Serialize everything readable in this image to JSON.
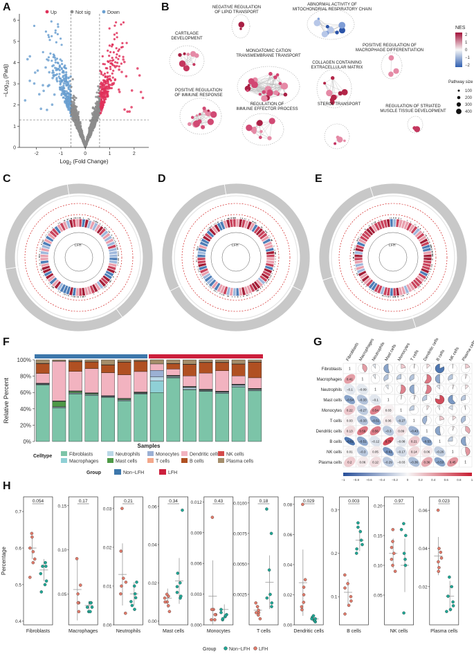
{
  "panels": {
    "A": "A",
    "B": "B",
    "C": "C",
    "D": "D",
    "E": "E",
    "F": "F",
    "G": "G",
    "H": "H"
  },
  "colors": {
    "up": "#e0305a",
    "notsig": "#8c8c8c",
    "down": "#6a9fd0",
    "nonlfh": "#3d77ab",
    "lfh": "#cc1f3c"
  },
  "chart_data": [
    {
      "type": "scatter",
      "panel": "A",
      "legend": [
        "Up",
        "Not sig",
        "Down"
      ],
      "xlabel_main": "Log",
      "xlabel_sub": "2",
      "xlabel_rest": " (Fold Change)",
      "ylabel_main": "−Log",
      "ylabel_sub": "10",
      "ylabel_rest": " (Padj)",
      "x_ticks": [
        "-2",
        "-1",
        "0",
        "1",
        "2"
      ],
      "y_ticks": [
        "0",
        "1",
        "2",
        "3",
        "4",
        "5",
        "6"
      ],
      "xlim": [
        -2.7,
        2.6
      ],
      "ylim": [
        0,
        6.3
      ],
      "fc_threshold": 0.585,
      "p_threshold": 1.3,
      "legend_position": "top"
    },
    {
      "type": "diagram",
      "panel": "B",
      "clusters": [
        "NEGATIVE REGULATION\nOF LIPID TRANSPORT",
        "ABNORMAL ACTIVITY OF\nMITOCHONDRIAL RESPIRATORY CHAIN",
        "CARTILAGE\nDEVELOPMENT",
        "MONOATOMIC CATION\nTRANSMEMBRANE TRANSPORT",
        "POSITIVE REGULATION OF\nMACROPHAGE DIFFERENTIATION",
        "COLLAGEN CONTAINING\nEXTRACELLULAR MATRIX",
        "POSITIVE REGULATION\nOF IMMUNE RESPONSE",
        "REGULATION OF STRIATED\nMUSCLE TISSUE DEVELOPMENT",
        "REGULATION OF\nIMMUNE EFFECTOR PROCESS",
        "STEROL TRANSPORT"
      ],
      "nes_title": "NES",
      "nes_ticks": [
        "2",
        "1",
        "0",
        "−1",
        "−2"
      ],
      "size_title": "Pathway size",
      "size_ticks": [
        "100",
        "200",
        "300",
        "400"
      ]
    },
    {
      "type": "circos",
      "panels": [
        "C",
        "D",
        "E"
      ],
      "center_labels": [
        "LFH",
        "LFH",
        "LFH"
      ]
    },
    {
      "type": "bar",
      "panel": "F",
      "stacked": true,
      "ylabel": "Relative Percent",
      "xlabel": "Samples",
      "y_ticks": [
        "0%",
        "20%",
        "40%",
        "60%",
        "80%",
        "100%"
      ],
      "celltype_title": "Celltype",
      "group_title": "Group",
      "cell_types": [
        "Fibroblasts",
        "Macrophages",
        "Neutrophils",
        "Mast cells",
        "Monocytes",
        "T cells",
        "Dendritic cells",
        "B cells",
        "NK cells",
        "Plasma cells"
      ],
      "cell_colors": [
        "#7cc4a8",
        "#8fd0d6",
        "#b9d7e6",
        "#4e9a47",
        "#9bb0d4",
        "#f3a78b",
        "#f2b3c0",
        "#b05022",
        "#d34a4a",
        "#a58e6b"
      ],
      "groups": [
        "Non−LFH",
        "LFH"
      ],
      "sample_group": [
        0,
        0,
        0,
        0,
        0,
        0,
        0,
        1,
        1,
        1,
        1,
        1,
        1,
        1
      ],
      "samples": [
        [
          64,
          0.5,
          0.5,
          0.3,
          0.5,
          0.2,
          11,
          11,
          0.3,
          4
        ],
        [
          40,
          0.5,
          1,
          6,
          0.6,
          0.4,
          47,
          0,
          0.2,
          1.5
        ],
        [
          56,
          0.5,
          1,
          1.5,
          0.5,
          0.2,
          23,
          11.5,
          0.3,
          1.8
        ],
        [
          57,
          0.6,
          1,
          1,
          0.5,
          0.3,
          30,
          8,
          0.3,
          2.5
        ],
        [
          54,
          0.5,
          0.6,
          0.3,
          0.5,
          0.2,
          28,
          9.5,
          0.3,
          6
        ],
        [
          50,
          0.5,
          1,
          1,
          0.5,
          0.2,
          29,
          15.5,
          0.3,
          2.6
        ],
        [
          58,
          0.5,
          0.7,
          0.5,
          0.5,
          0.3,
          25,
          12.5,
          0.3,
          1.5
        ],
        [
          60,
          0,
          0,
          0,
          0,
          0,
          0,
          0,
          0,
          0
        ],
        [
          71,
          0.5,
          1,
          0.5,
          0.5,
          0.3,
          7,
          6,
          0.3,
          4
        ],
        [
          59,
          0.5,
          2,
          0.5,
          0.5,
          0.3,
          12,
          13,
          0.3,
          5
        ],
        [
          62,
          0.5,
          0.8,
          0.5,
          0.5,
          0.3,
          20,
          13,
          0.3,
          3
        ],
        [
          59,
          0.5,
          1,
          0.5,
          0.5,
          0.3,
          25,
          10,
          0.3,
          3
        ],
        [
          60,
          0.5,
          1.5,
          0.5,
          0.5,
          0.3,
          9,
          13,
          0.3,
          4.5
        ],
        [
          62,
          0.5,
          1,
          0.5,
          0.5,
          0.3,
          13,
          19,
          0.3,
          2.6
        ]
      ]
    },
    {
      "type": "heatmap",
      "panel": "G",
      "labels": [
        "Fibroblasts",
        "Macrophages",
        "Neutrophils",
        "Mast cells",
        "Monocytes",
        "T cells",
        "Dendritic cells",
        "B cells",
        "NK cells",
        "Plasma cells"
      ],
      "lower": [
        [
          "1"
        ],
        [
          "0.41",
          "1"
        ],
        [
          "−0.1",
          "−0.09",
          "1"
        ],
        [
          "−0.54",
          "−0.33",
          "−0.1",
          "1"
        ],
        [
          "0.22",
          "−0.27",
          "0.54",
          "0.03",
          "1"
        ],
        [
          "0.03",
          "−0.33",
          "−0.51",
          "0.06",
          "−0.27",
          "1"
        ],
        [
          "0.13",
          "0.59",
          "0.56",
          "−0.3",
          "0.09",
          "−0.43",
          "1"
        ],
        [
          "−0.82",
          "−0.51",
          "−0.12",
          "0.79",
          "−0.08",
          "0.21",
          "−0.53",
          "1"
        ],
        [
          "0.01",
          "−0.3",
          "0.05",
          "−0.61",
          "−0.17",
          "0.14",
          "0.06",
          "−0.26",
          "1"
        ],
        [
          "0.2",
          "0.06",
          "0.12",
          "−0.29",
          "−0.03",
          "−0.36",
          "0.36",
          "−0.53",
          "0.45",
          "1"
        ]
      ],
      "colorbar_ticks": [
        "−1",
        "−0.8",
        "−0.6",
        "−0.4",
        "−0.2",
        "0",
        "0.2",
        "0.4",
        "0.6",
        "0.8",
        "1"
      ]
    },
    {
      "type": "scatter",
      "panel": "H",
      "ylabel": "Percentage",
      "legend_title": "Group",
      "legend": [
        "Non−LFH",
        "LFH"
      ],
      "facets": [
        {
          "name": "Fibroblasts",
          "p": "0.054",
          "ylim": [
            0.39,
            0.74
          ],
          "yticks": [
            "0.4",
            "0.5",
            "0.6",
            "0.7"
          ],
          "yvals": [
            0.4,
            0.5,
            0.6,
            0.7
          ],
          "lfh": [
            0.64,
            0.59,
            0.52,
            0.6,
            0.56,
            0.63,
            0.57
          ],
          "non": [
            0.56,
            0.51,
            0.55,
            0.5,
            0.48,
            0.53,
            0.55
          ],
          "lfh_mean": 0.6,
          "lfh_sd": 0.03,
          "non_mean": 0.54,
          "non_sd": 0.03
        },
        {
          "name": "Macrophages",
          "p": "0.17",
          "ylim": [
            0.015,
            0.16
          ],
          "yticks": [
            "0.05",
            "0.10",
            "0.15"
          ],
          "yvals": [
            0.05,
            0.1,
            0.15
          ],
          "lfh": [
            0.09,
            0.04,
            0.03,
            0.05,
            0.06,
            0.04,
            0.04
          ],
          "non": [
            0.04,
            0.03,
            0.035,
            0.04,
            0.03,
            0.04,
            0.035
          ],
          "lfh_mean": 0.055,
          "lfh_sd": 0.035,
          "non_mean": 0.037,
          "non_sd": 0.005
        },
        {
          "name": "Neutrophils",
          "p": "0.21",
          "ylim": [
            0,
            0.033
          ],
          "yticks": [
            "0.00",
            "0.01",
            "0.02",
            "0.03"
          ],
          "yvals": [
            0,
            0.01,
            0.02,
            0.03
          ],
          "lfh": [
            0.03,
            0.012,
            0.008,
            0.011,
            0.019,
            0.003,
            0.01
          ],
          "non": [
            0.011,
            0.006,
            0.004,
            0.008,
            0.005,
            0.01,
            0.007
          ],
          "lfh_mean": 0.013,
          "lfh_sd": 0.008,
          "non_mean": 0.008,
          "non_sd": 0.003
        },
        {
          "name": "Mast cells",
          "p": "0.34",
          "ylim": [
            -0.002,
            0.065
          ],
          "yticks": [
            "0.00",
            "0.02",
            "0.04",
            "0.06"
          ],
          "yvals": [
            0,
            0.02,
            0.04,
            0.06
          ],
          "lfh": [
            0.01,
            0.013,
            0.005,
            0.014,
            0.008,
            0.01,
            0.012
          ],
          "non": [
            0.058,
            0.012,
            0.015,
            0.02,
            0.013,
            0.025,
            0.018
          ],
          "lfh_mean": 0.012,
          "lfh_sd": 0.005,
          "non_mean": 0.021,
          "non_sd": 0.012
        },
        {
          "name": "Monocytes",
          "p": "0.43",
          "ylim": [
            0,
            0.0125
          ],
          "yticks": [
            "0.000",
            "0.003",
            "0.006",
            "0.009",
            "0.012"
          ],
          "yvals": [
            0,
            0.003,
            0.006,
            0.009,
            0.012
          ],
          "lfh": [
            0.0105,
            0.0015,
            0.0005,
            0.0005,
            0.001,
            0.0015,
            0.001
          ],
          "non": [
            0.0015,
            0.0005,
            0.001,
            0.0008,
            0.0006,
            0.0012,
            0.0009
          ],
          "lfh_mean": 0.0028,
          "lfh_sd": 0.0035,
          "non_mean": 0.0015,
          "non_sd": 0.0005
        },
        {
          "name": "T cells",
          "p": "0.18",
          "ylim": [
            0,
            0.0105
          ],
          "yticks": [
            "0.0025",
            "0.0050",
            "0.0075",
            "0.0100"
          ],
          "yvals": [
            0.0025,
            0.005,
            0.0075,
            0.01
          ],
          "lfh": [
            0.0015,
            0.001,
            0.0005,
            0.0018,
            0.001,
            0.0012,
            0.0008
          ],
          "non": [
            0.0095,
            0.0018,
            0.0045,
            0.0025,
            0.0015,
            0.0075,
            0.0022
          ],
          "lfh_mean": 0.0012,
          "lfh_sd": 0.0004,
          "non_mean": 0.0035,
          "non_sd": 0.0022
        },
        {
          "name": "Dendritic cells",
          "p": "0.029",
          "ylim": [
            0,
            0.085
          ],
          "yticks": [
            "0.00",
            "0.02",
            "0.04",
            "0.06",
            "0.08"
          ],
          "yvals": [
            0,
            0.02,
            0.04,
            0.06,
            0.08
          ],
          "lfh": [
            0.08,
            0.02,
            0.01,
            0.025,
            0.015,
            0.03,
            0.012
          ],
          "non": [
            0.005,
            0.003,
            0.004,
            0.002,
            0.006,
            0.003,
            0.004
          ],
          "lfh_mean": 0.028,
          "lfh_sd": 0.022,
          "non_mean": 0.004,
          "non_sd": 0.001
        },
        {
          "name": "B cells",
          "p": "0.003",
          "ylim": [
            0.035,
            0.33
          ],
          "yticks": [
            "0.1",
            "0.2",
            "0.3"
          ],
          "yvals": [
            0.1,
            0.2,
            0.3
          ],
          "lfh": [
            0.13,
            0.08,
            0.1,
            0.15,
            0.09,
            0.12,
            0.06
          ],
          "non": [
            0.26,
            0.2,
            0.23,
            0.25,
            0.22,
            0.27,
            0.21
          ],
          "lfh_mean": 0.11,
          "lfh_sd": 0.03,
          "non_mean": 0.23,
          "non_sd": 0.025
        },
        {
          "name": "NK cells",
          "p": "0.97",
          "ylim": [
            0,
            0.215
          ],
          "yticks": [
            "0.05",
            "0.10",
            "0.15",
            "0.20"
          ],
          "yvals": [
            0.05,
            0.1,
            0.15,
            0.2
          ],
          "lfh": [
            0.16,
            0.12,
            0.1,
            0.14,
            0.11,
            0.13,
            0.09
          ],
          "non": [
            0.17,
            0.15,
            0.02,
            0.1,
            0.12,
            0.16,
            0.11
          ],
          "lfh_mean": 0.12,
          "lfh_sd": 0.025,
          "non_mean": 0.1,
          "non_sd": 0.045
        },
        {
          "name": "Plasma cells",
          "p": "0.023",
          "ylim": [
            0,
            0.067
          ],
          "yticks": [
            "0.02",
            "0.04",
            "0.06"
          ],
          "yvals": [
            0.02,
            0.04,
            0.06
          ],
          "lfh": [
            0.06,
            0.04,
            0.035,
            0.038,
            0.03,
            0.033,
            0.028
          ],
          "non": [
            0.025,
            0.015,
            0.01,
            0.008,
            0.012,
            0.02,
            0.007
          ],
          "lfh_mean": 0.036,
          "lfh_sd": 0.01,
          "non_mean": 0.015,
          "non_sd": 0.008
        }
      ]
    }
  ]
}
